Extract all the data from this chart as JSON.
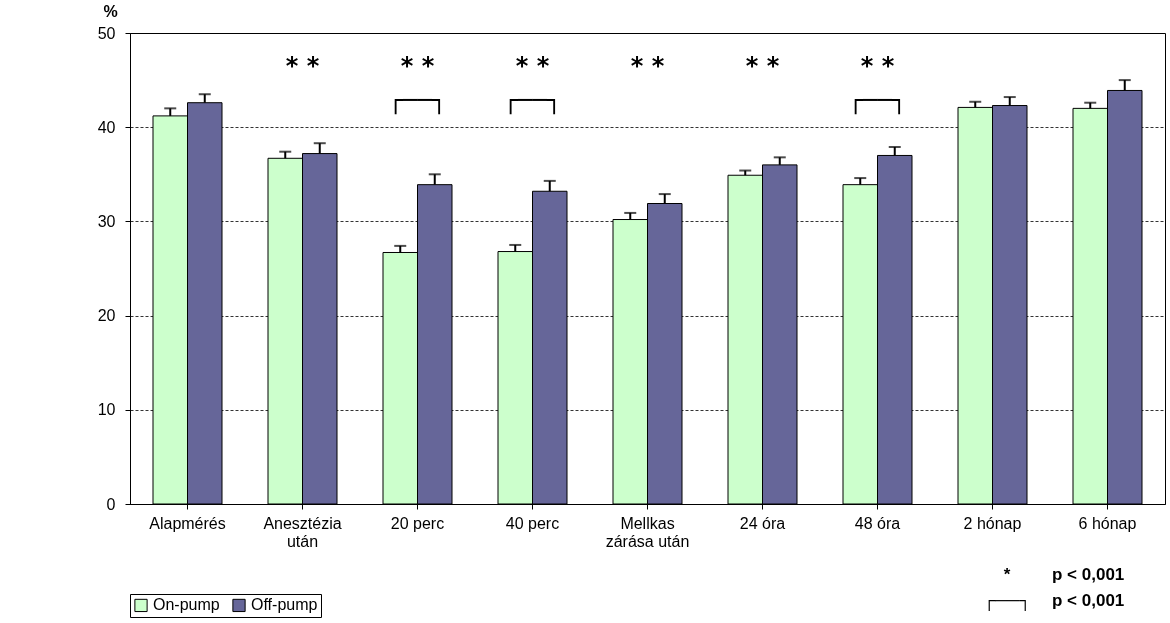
{
  "chart_data": {
    "type": "bar",
    "ylabel": "%",
    "categories": [
      "Alapmérés",
      "Anesztézia\nután",
      "20 perc",
      "40 perc",
      "Mellkas\nzárása után",
      "24 óra",
      "48 óra",
      "2 hónap",
      "6 hónap"
    ],
    "series": [
      {
        "name": "On-pump",
        "color": "#ccffcc",
        "values": [
          41.2,
          36.7,
          26.7,
          26.8,
          30.2,
          34.9,
          33.9,
          42.1,
          42.0
        ],
        "errors": [
          [
            41.2,
            42.0
          ],
          [
            36.7,
            37.4
          ],
          [
            26.7,
            27.4
          ],
          [
            26.8,
            27.5
          ],
          [
            30.2,
            30.9
          ],
          [
            34.9,
            35.4
          ],
          [
            33.9,
            34.6
          ],
          [
            42.1,
            42.7
          ],
          [
            42.0,
            42.6
          ]
        ]
      },
      {
        "name": "Off-pump",
        "color": "#666699",
        "values": [
          42.6,
          37.2,
          33.9,
          33.2,
          31.9,
          36.0,
          37.0,
          42.3,
          43.9
        ],
        "errors": [
          [
            42.6,
            43.5
          ],
          [
            37.2,
            38.3
          ],
          [
            33.9,
            35.0
          ],
          [
            33.2,
            34.3
          ],
          [
            31.9,
            32.9
          ],
          [
            36.0,
            36.8
          ],
          [
            37.0,
            37.9
          ],
          [
            42.3,
            43.2
          ],
          [
            43.9,
            45.0
          ]
        ]
      }
    ],
    "ylim": [
      0,
      50
    ],
    "yticks": [
      0,
      10,
      20,
      30,
      40,
      50
    ],
    "grid": "y",
    "legend": "bottom",
    "annotations": [
      "*   *",
      "*   *\n┌──┐",
      "*   *\n┌──┐",
      "*   *",
      "*   *",
      "*   *\n┌──┐",
      "*",
      "p < 0,001",
      "┌──┐",
      "p < 0,001"
    ]
  }
}
